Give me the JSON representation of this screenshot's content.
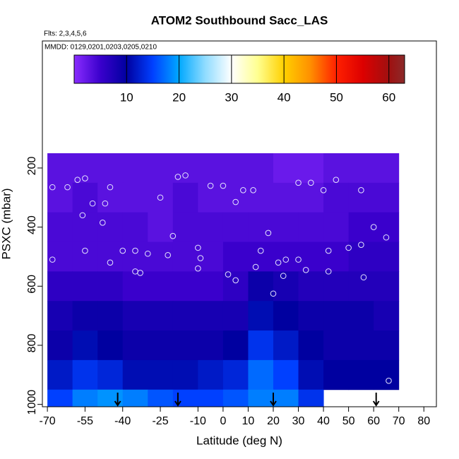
{
  "chart_data": {
    "type": "heatmap",
    "title": "ATOM2 Southbound Sacc_LAS",
    "subtitle": "Flts: 2,3,4,5,6",
    "annotation": "MMDD: 0129,0201,0203,0205,0210",
    "xlabel": "Latitude (deg N)",
    "ylabel": "PSXC (mbar)",
    "x": [
      -65,
      -55,
      -45,
      -35,
      -25,
      -15,
      -5,
      5,
      15,
      25,
      35,
      45,
      55,
      65
    ],
    "y": [
      200,
      300,
      400,
      500,
      600,
      700,
      800,
      900,
      1000
    ],
    "z": [
      [
        3,
        3,
        3,
        3,
        3,
        3,
        3,
        3,
        3,
        2,
        2,
        3,
        3,
        3
      ],
      [
        3,
        4,
        3,
        3,
        3,
        4,
        3,
        3,
        3,
        3,
        3,
        4,
        4,
        4
      ],
      [
        4,
        4,
        4,
        4,
        3,
        4,
        4,
        4,
        4,
        4,
        4,
        4,
        5,
        5
      ],
      [
        4,
        4,
        4,
        4,
        4,
        4,
        4,
        5,
        5,
        5,
        5,
        5,
        6,
        6
      ],
      [
        6,
        6,
        6,
        5,
        5,
        5,
        5,
        6,
        9,
        8,
        7,
        7,
        7,
        7
      ],
      [
        8,
        9,
        9,
        8,
        8,
        8,
        8,
        8,
        11,
        10,
        9,
        9,
        9,
        8
      ],
      [
        9,
        11,
        10,
        9,
        9,
        9,
        9,
        10,
        14,
        12,
        10,
        9,
        9,
        9
      ],
      [
        12,
        14,
        13,
        11,
        11,
        11,
        12,
        13,
        17,
        15,
        11,
        10,
        10,
        10
      ],
      [
        15,
        18,
        19,
        18,
        16,
        15,
        15,
        16,
        18,
        18,
        14,
        null,
        null,
        null
      ]
    ],
    "points": {
      "x": [
        -68,
        -62,
        -58,
        -55,
        -52,
        -47,
        -45,
        -40,
        -35,
        -30,
        -25,
        -18,
        -15,
        -10,
        -5,
        0,
        5,
        8,
        12,
        15,
        18,
        22,
        25,
        30,
        35,
        40,
        45,
        50,
        55,
        60,
        -56,
        -48,
        -33,
        -20,
        -9,
        2,
        13,
        24,
        33,
        42,
        56,
        65,
        -68,
        -55,
        -45,
        -35,
        -22,
        -10,
        5,
        20,
        30,
        42,
        55,
        66
      ],
      "y": [
        265,
        265,
        240,
        235,
        320,
        320,
        265,
        480,
        480,
        490,
        300,
        230,
        225,
        470,
        260,
        260,
        315,
        275,
        275,
        480,
        420,
        520,
        510,
        250,
        250,
        275,
        240,
        470,
        275,
        400,
        360,
        385,
        555,
        430,
        505,
        560,
        535,
        565,
        545,
        480,
        570,
        435,
        510,
        480,
        520,
        550,
        495,
        540,
        580,
        625,
        510,
        550,
        460,
        920
      ]
    },
    "arrows": [
      -42,
      -18,
      20,
      61
    ],
    "xlim": [
      -72,
      85
    ],
    "ylim": [
      -230,
      1008
    ],
    "xticks": [
      -70,
      -55,
      -40,
      -25,
      -10,
      0,
      10,
      20,
      30,
      40,
      50,
      60,
      70,
      80
    ],
    "yticks": [
      200,
      400,
      600,
      800,
      1000
    ],
    "clim": [
      0,
      63
    ],
    "cticks": [
      10,
      20,
      30,
      40,
      50,
      60
    ],
    "colorscale": [
      [
        0,
        "#8a2cff"
      ],
      [
        5,
        "#3a00cc"
      ],
      [
        10,
        "#0000a0"
      ],
      [
        15,
        "#0040ff"
      ],
      [
        20,
        "#00a8ff"
      ],
      [
        25,
        "#90dcff"
      ],
      [
        30,
        "#ffffff"
      ],
      [
        35,
        "#ffff90"
      ],
      [
        40,
        "#ffd000"
      ],
      [
        45,
        "#ff9000"
      ],
      [
        50,
        "#ff2000"
      ],
      [
        55,
        "#dd0000"
      ],
      [
        60,
        "#a01010"
      ],
      [
        63,
        "#8b2a2a"
      ]
    ],
    "point_color": "#e6e6ff",
    "arrow_color": "#000000"
  }
}
